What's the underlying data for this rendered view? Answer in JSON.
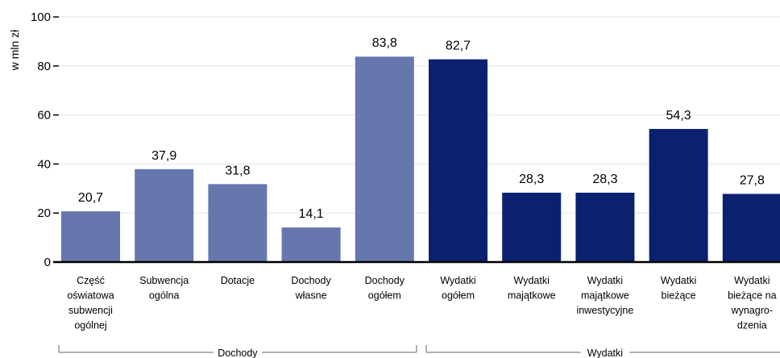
{
  "chart_data": {
    "type": "bar",
    "ylabel": "w mln zł",
    "ylim": [
      0,
      100
    ],
    "yticks": [
      0,
      20,
      40,
      60,
      80,
      100
    ],
    "grid": true,
    "categories": [
      [
        "Część",
        "oświatowa",
        "subwencji",
        "ogólnej"
      ],
      [
        "Subwencja",
        "ogólna"
      ],
      [
        "Dotacje"
      ],
      [
        "Dochody",
        "własne"
      ],
      [
        "Dochody",
        "ogółem"
      ],
      [
        "Wydatki",
        "ogółem"
      ],
      [
        "Wydatki",
        "majątkowe"
      ],
      [
        "Wydatki",
        "majątkowe",
        "inwestycyjne"
      ],
      [
        "Wydatki",
        "bieżące"
      ],
      [
        "Wydatki",
        "bieżące na",
        "wynagro-",
        "dzenia"
      ]
    ],
    "values": [
      20.7,
      37.9,
      31.8,
      14.1,
      83.8,
      82.7,
      28.3,
      28.3,
      54.3,
      27.8
    ],
    "value_labels": [
      "20,7",
      "37,9",
      "31,8",
      "14,1",
      "83,8",
      "82,7",
      "28,3",
      "28,3",
      "54,3",
      "27,8"
    ],
    "groups": [
      {
        "label": "Dochody",
        "from": 0,
        "to": 4,
        "color": "#6677ad"
      },
      {
        "label": "Wydatki",
        "from": 5,
        "to": 9,
        "color": "#0b2170"
      }
    ]
  }
}
